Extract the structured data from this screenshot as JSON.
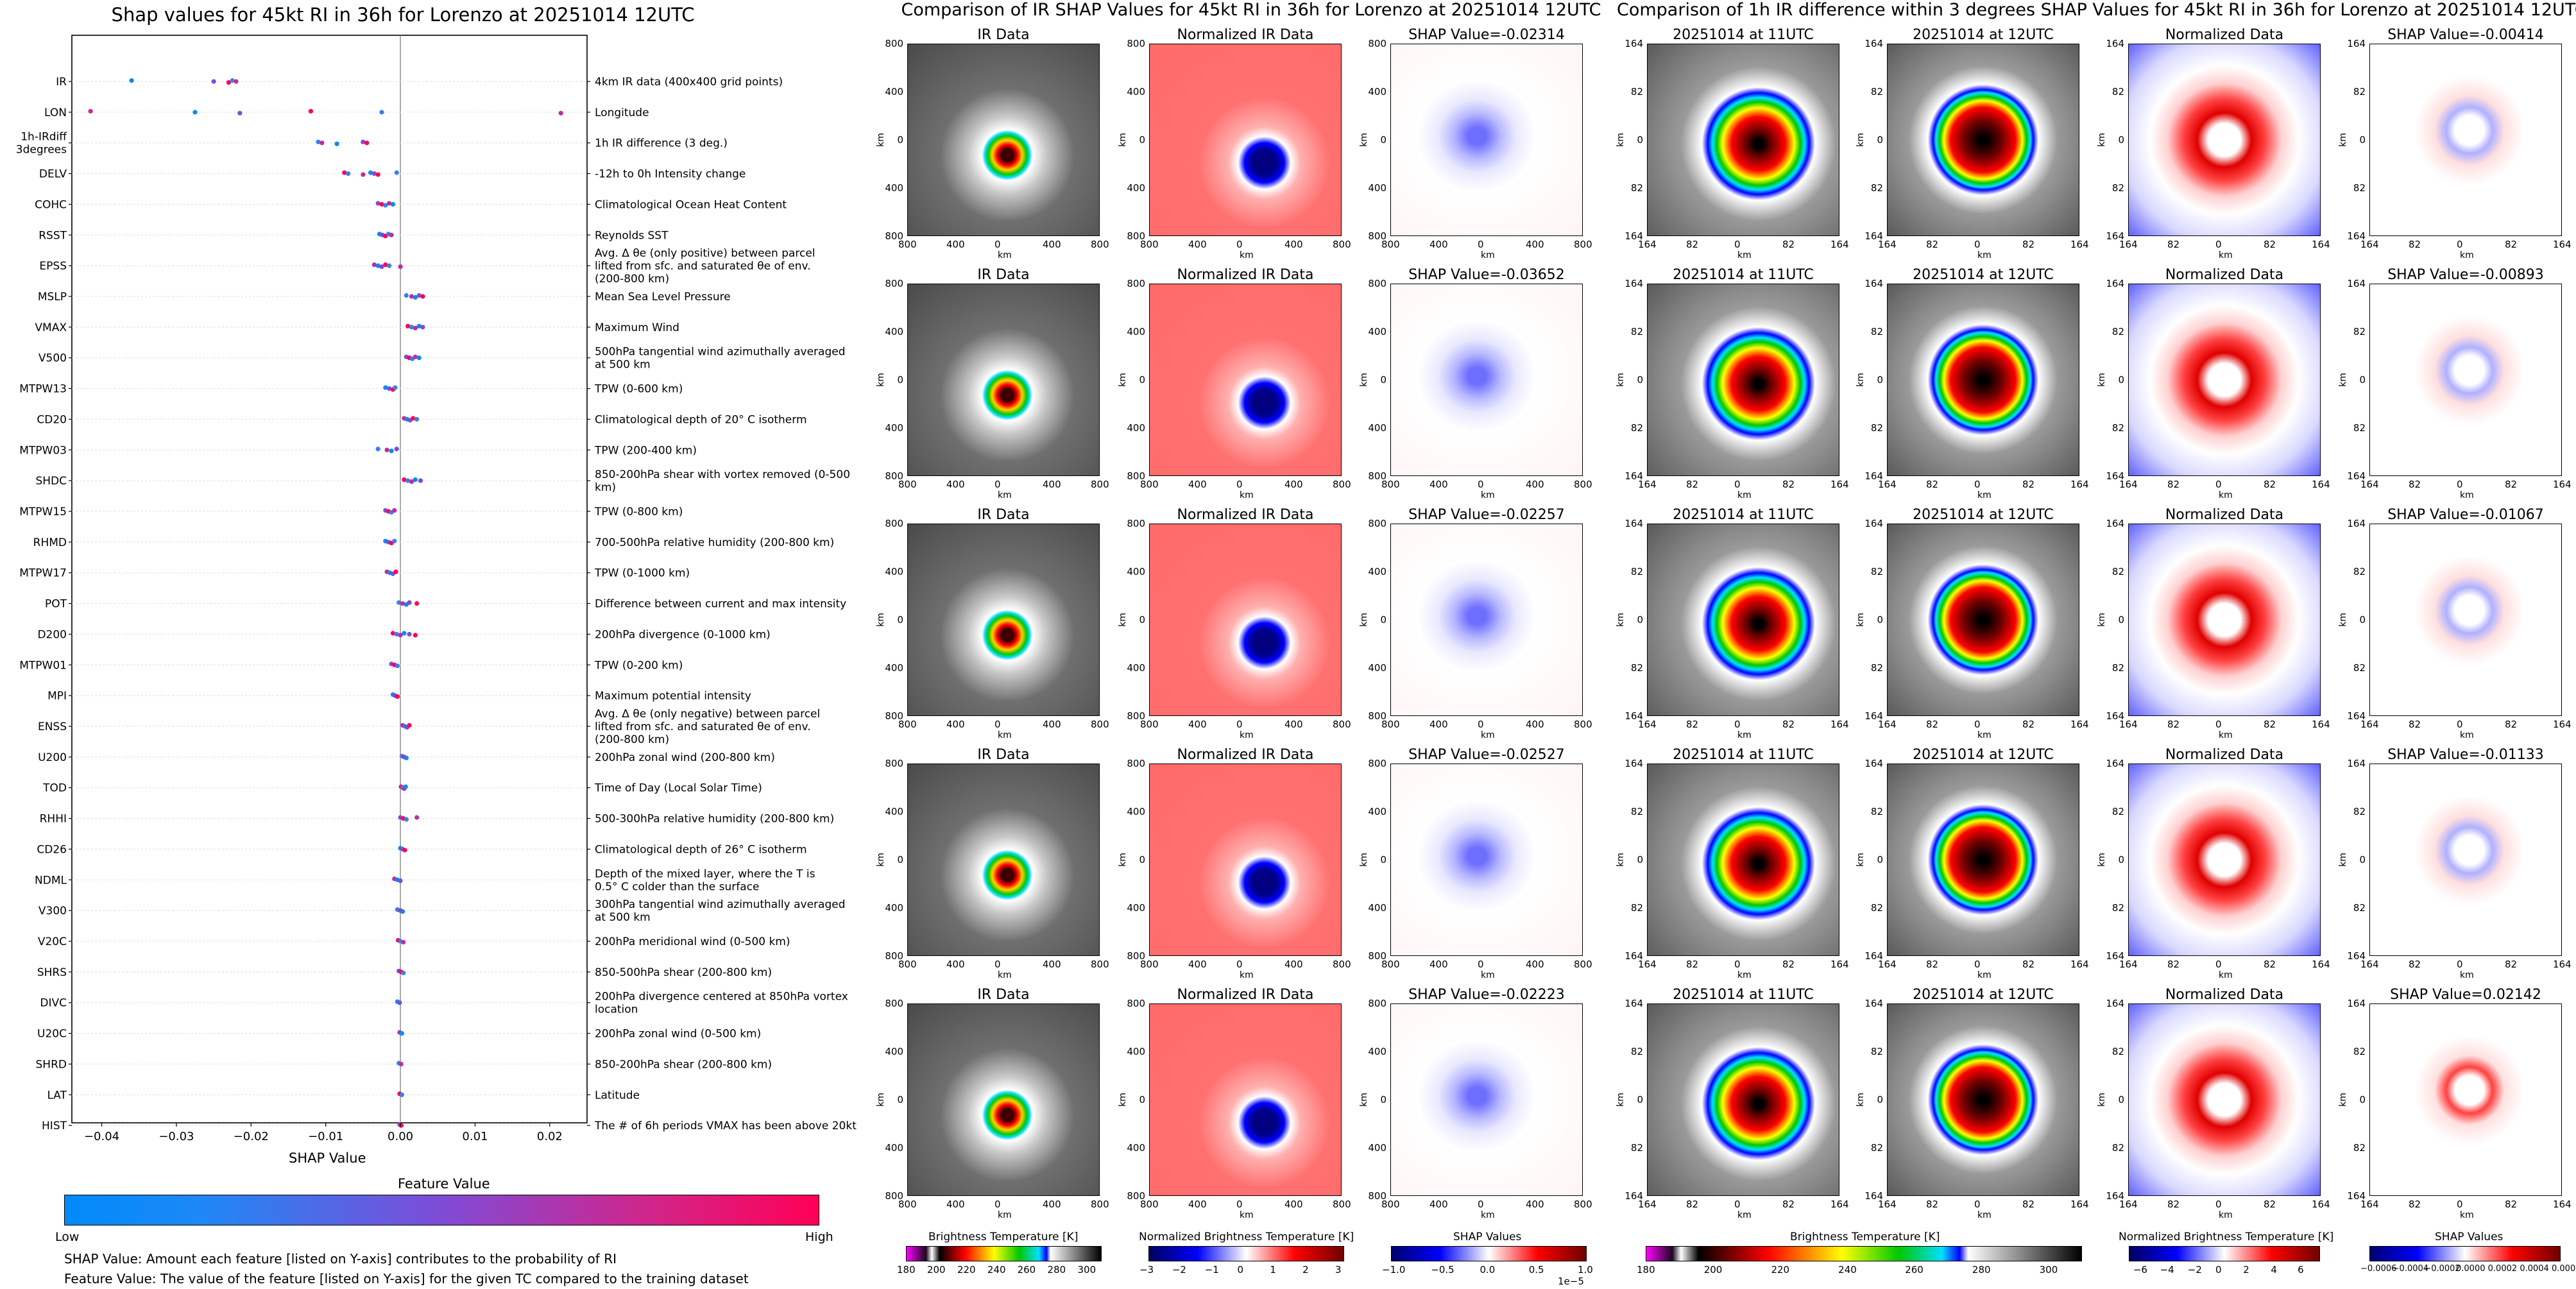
{
  "chart_data": [
    {
      "type": "scatter",
      "title": "Shap values for 45kt RI in 36h for Lorenzo at 20251014 12UTC",
      "xlabel": "SHAP Value",
      "xticks": [
        "−0.04",
        "−0.03",
        "−0.02",
        "−0.01",
        "0.00",
        "0.01",
        "0.02"
      ],
      "xlim": [
        -0.044,
        0.025
      ],
      "features": [
        {
          "name": "IR",
          "desc": "4km IR data (400x400 grid points)",
          "shap": [
            -0.036,
            -0.025,
            -0.023,
            -0.0225,
            -0.022
          ]
        },
        {
          "name": "LON",
          "desc": "Longitude",
          "shap": [
            -0.0415,
            -0.0275,
            -0.0215,
            -0.012,
            -0.0025,
            0.0215
          ]
        },
        {
          "name": "1h-IRdiff 3degrees",
          "desc": "1h IR difference (3 deg.)",
          "shap": [
            -0.011,
            -0.0105,
            -0.0085,
            -0.005,
            -0.0045
          ]
        },
        {
          "name": "DELV",
          "desc": "-12h to 0h Intensity change",
          "shap": [
            -0.0075,
            -0.007,
            -0.005,
            -0.004,
            -0.0035,
            -0.003,
            -0.0005
          ]
        },
        {
          "name": "COHC",
          "desc": "Climatological Ocean Heat Content",
          "shap": [
            -0.003,
            -0.0025,
            -0.002,
            -0.0015,
            -0.001
          ]
        },
        {
          "name": "RSST",
          "desc": "Reynolds SST",
          "shap": [
            -0.0028,
            -0.0024,
            -0.002,
            -0.0016,
            -0.0012
          ]
        },
        {
          "name": "EPSS",
          "desc": "Avg. Δ θe (only positive) between parcel lifted from sfc. and saturated θe of env. (200-800 km)",
          "shap": [
            -0.0035,
            -0.003,
            -0.0025,
            -0.002,
            -0.0015,
            0.0
          ]
        },
        {
          "name": "MSLP",
          "desc": "Mean Sea Level Pressure",
          "shap": [
            0.0008,
            0.0015,
            0.002,
            0.0025,
            0.003
          ]
        },
        {
          "name": "VMAX",
          "desc": "Maximum Wind",
          "shap": [
            0.001,
            0.0015,
            0.002,
            0.0025,
            0.003
          ]
        },
        {
          "name": "V500",
          "desc": "500hPa tangential wind azimuthally averaged at 500 km",
          "shap": [
            0.0008,
            0.0012,
            0.0016,
            0.002,
            0.0025
          ]
        },
        {
          "name": "MTPW13",
          "desc": "TPW (0-600 km)",
          "shap": [
            -0.002,
            -0.0015,
            -0.001,
            -0.0007
          ]
        },
        {
          "name": "CD20",
          "desc": "Climatological depth of 20° C isotherm",
          "shap": [
            0.0005,
            0.0009,
            0.0013,
            0.0017,
            0.0022
          ]
        },
        {
          "name": "MTPW03",
          "desc": "TPW (200-400 km)",
          "shap": [
            -0.003,
            -0.0018,
            -0.0012,
            -0.0005
          ]
        },
        {
          "name": "SHDC",
          "desc": "850-200hPa shear with vortex removed (0-500 km)",
          "shap": [
            0.0005,
            0.001,
            0.0015,
            0.002,
            0.0027
          ]
        },
        {
          "name": "MTPW15",
          "desc": "TPW (0-800 km)",
          "shap": [
            -0.002,
            -0.0016,
            -0.0012,
            -0.0008
          ]
        },
        {
          "name": "RHMD",
          "desc": "700-500hPa relative humidity (200-800 km)",
          "shap": [
            -0.002,
            -0.0016,
            -0.0012,
            -0.0008
          ]
        },
        {
          "name": "MTPW17",
          "desc": "TPW (0-1000 km)",
          "shap": [
            -0.0018,
            -0.0014,
            -0.001,
            -0.0006
          ]
        },
        {
          "name": "POT",
          "desc": "Difference between current and max intensity",
          "shap": [
            -0.0002,
            0.0003,
            0.0008,
            0.0012,
            0.0022
          ]
        },
        {
          "name": "D200",
          "desc": "200hPa divergence (0-1000 km)",
          "shap": [
            -0.001,
            -0.0005,
            0.0,
            0.0005,
            0.0012,
            0.002
          ]
        },
        {
          "name": "MTPW01",
          "desc": "TPW (0-200 km)",
          "shap": [
            -0.0012,
            -0.0008,
            -0.0004
          ]
        },
        {
          "name": "MPI",
          "desc": "Maximum potential intensity",
          "shap": [
            -0.001,
            -0.0007,
            -0.0004
          ]
        },
        {
          "name": "ENSS",
          "desc": "Avg. Δ θe (only negative) between parcel lifted from sfc. and saturated θe of env. (200-800 km)",
          "shap": [
            0.0003,
            0.0006,
            0.0009,
            0.0012
          ]
        },
        {
          "name": "U200",
          "desc": "200hPa zonal wind (200-800 km)",
          "shap": [
            0.0002,
            0.0005,
            0.0008
          ]
        },
        {
          "name": "TOD",
          "desc": "Time of Day (Local Solar Time)",
          "shap": [
            0.0001,
            0.0003,
            0.0005,
            0.0007
          ]
        },
        {
          "name": "RHHI",
          "desc": "500-300hPa relative humidity (200-800 km)",
          "shap": [
            0.0,
            0.0004,
            0.0008,
            0.0022
          ]
        },
        {
          "name": "CD26",
          "desc": "Climatological depth of 26° C isotherm",
          "shap": [
            0.0,
            0.0003,
            0.0006
          ]
        },
        {
          "name": "NDML",
          "desc": "Depth of the mixed layer, where the T is 0.5° C colder than the surface",
          "shap": [
            -0.0008,
            -0.0004,
            0.0
          ]
        },
        {
          "name": "V300",
          "desc": "300hPa tangential wind azimuthally averaged at 500 km",
          "shap": [
            -0.0004,
            0.0,
            0.0003
          ]
        },
        {
          "name": "V20C",
          "desc": "200hPa meridional wind (0-500 km)",
          "shap": [
            -0.0003,
            0.0,
            0.0004
          ]
        },
        {
          "name": "SHRS",
          "desc": "850-500hPa shear (200-800 km)",
          "shap": [
            -0.0002,
            0.0001,
            0.0004
          ]
        },
        {
          "name": "DIVC",
          "desc": "200hPa divergence centered at 850hPa vortex location",
          "shap": [
            -0.0004,
            -0.0001
          ]
        },
        {
          "name": "U20C",
          "desc": "200hPa zonal wind (0-500 km)",
          "shap": [
            -0.0001,
            0.0002
          ]
        },
        {
          "name": "SHRD",
          "desc": "850-200hPa shear (200-800 km)",
          "shap": [
            -0.0002,
            0.0001
          ]
        },
        {
          "name": "LAT",
          "desc": "Latitude",
          "shap": [
            -0.0001,
            0.0002
          ]
        },
        {
          "name": "HIST",
          "desc": "The # of 6h periods VMAX has been above 20kt",
          "shap": [
            -0.0001,
            0.0001
          ]
        }
      ],
      "colorbar": {
        "title": "Feature Value",
        "low": "Low",
        "high": "High",
        "colors": [
          "#008afb",
          "#7f4bd6",
          "#ff0055"
        ]
      },
      "notes": [
        "SHAP Value: Amount each feature [listed on Y-axis] contributes to the probability of RI",
        "Feature Value: The value of the feature [listed on Y-axis] for the given TC compared to the training dataset"
      ]
    },
    {
      "type": "heatmap",
      "title": "Comparison of IR SHAP Values for 45kt RI in 36h for Lorenzo at 20251014 12UTC",
      "column_titles": [
        "IR Data",
        "Normalized IR Data"
      ],
      "shap_titles": [
        "SHAP Value=-0.02314",
        "SHAP Value=-0.03652",
        "SHAP Value=-0.02257",
        "SHAP Value=-0.02527",
        "SHAP Value=-0.02223"
      ],
      "xlabel": "km",
      "ylabel": "km",
      "xticks": [
        "800",
        "400",
        "0",
        "400",
        "800"
      ],
      "yticks": [
        "800",
        "400",
        "0",
        "400",
        "800"
      ],
      "colorbars": [
        {
          "title": "Brightness Temperature [K]",
          "ticks": [
            "180",
            "200",
            "220",
            "240",
            "260",
            "280",
            "300"
          ]
        },
        {
          "title": "Normalized Brightness Temperature [K]",
          "ticks": [
            "−3",
            "−2",
            "−1",
            "0",
            "1",
            "2",
            "3"
          ]
        },
        {
          "title": "SHAP Values",
          "ticks": [
            "−1.0",
            "−0.5",
            "0.0",
            "0.5",
            "1.0"
          ],
          "multiplier": "1e−5"
        }
      ]
    },
    {
      "type": "heatmap",
      "title": "Comparison of 1h IR difference within 3 degrees SHAP Values for 45kt RI in 36h for Lorenzo at 20251014 12UTC",
      "column_titles": [
        "20251014 at 11UTC",
        "20251014 at 12UTC",
        "Normalized Data"
      ],
      "shap_titles": [
        "SHAP Value=-0.00414",
        "SHAP Value=-0.00893",
        "SHAP Value=-0.01067",
        "SHAP Value=-0.01133",
        "SHAP Value=0.02142"
      ],
      "xlabel": "km",
      "ylabel": "km",
      "xticks": [
        "164",
        "82",
        "0",
        "82",
        "164"
      ],
      "yticks": [
        "164",
        "82",
        "0",
        "82",
        "164"
      ],
      "colorbars": [
        {
          "title": "Brightness Temperature [K]",
          "ticks": [
            "180",
            "200",
            "220",
            "240",
            "260",
            "280",
            "300"
          ]
        },
        {
          "title": "Normalized Brightness Temperature [K]",
          "ticks": [
            "−6",
            "−4",
            "−2",
            "0",
            "2",
            "4",
            "6"
          ]
        },
        {
          "title": "SHAP Values",
          "ticks": [
            "−0.0006",
            "−0.0004",
            "−0.0002",
            "0.0000",
            "0.0002",
            "0.0004",
            "0.0006"
          ]
        }
      ]
    }
  ]
}
